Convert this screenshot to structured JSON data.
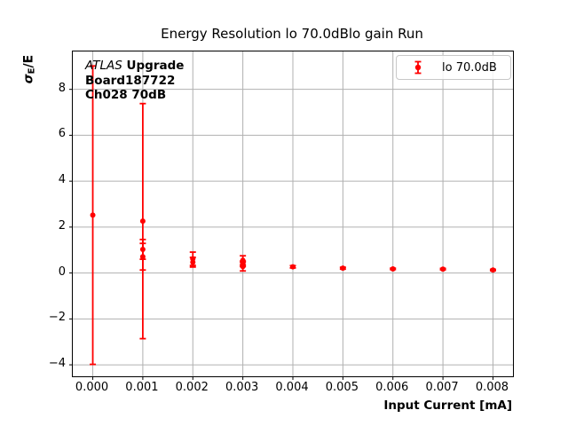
{
  "figure": {
    "title": "Energy Resolution lo 70.0dBlo gain Run"
  },
  "axis": {
    "xlabel": "Input Current [mA]",
    "ylabel_sigma": "σ",
    "ylabel_sub": "E",
    "ylabel_rest": "/E"
  },
  "annotation": {
    "line1_italic": "ATLAS",
    "line1_bold": " Upgrade",
    "line2": "Board187722",
    "line3": "Ch028 70dB"
  },
  "legend": {
    "label": "lo 70.0dB"
  },
  "colors": {
    "series": "#ff0000",
    "grid": "#b0b0b0",
    "axis": "#000000",
    "legend_border": "#c8c8c8",
    "background": "#ffffff"
  },
  "chart_data": {
    "type": "scatter",
    "title": "Energy Resolution lo 70.0dBlo gain Run",
    "xlabel": "Input Current [mA]",
    "ylabel": "σE/E",
    "grid": true,
    "legend_position": "upper right",
    "legend_entries": [
      "lo 70.0dB"
    ],
    "xlim": [
      -0.0004,
      0.0084
    ],
    "ylim": [
      -4.5,
      9.65
    ],
    "xticks": [
      0.0,
      0.001,
      0.002,
      0.003,
      0.004,
      0.005,
      0.006,
      0.007,
      0.008
    ],
    "xtick_labels": [
      "0.000",
      "0.001",
      "0.002",
      "0.003",
      "0.004",
      "0.005",
      "0.006",
      "0.007",
      "0.008"
    ],
    "yticks": [
      8,
      6,
      4,
      2,
      0,
      -2,
      -4
    ],
    "ytick_labels": [
      "8",
      "6",
      "4",
      "2",
      "0",
      "−2",
      "−4"
    ],
    "series": [
      {
        "name": "lo 70.0dB",
        "color": "#ff0000",
        "marker": "circle",
        "points": [
          {
            "x": 0.0,
            "y": 2.52,
            "yerr": 6.5
          },
          {
            "x": 0.001,
            "y": 2.26,
            "yerr": 5.12
          },
          {
            "x": 0.001,
            "y": 1.03,
            "yerr": 0.43
          },
          {
            "x": 0.001,
            "y": 0.71,
            "yerr": 0.58
          },
          {
            "x": 0.002,
            "y": 0.62,
            "yerr": 0.29
          },
          {
            "x": 0.002,
            "y": 0.47,
            "yerr": 0.21
          },
          {
            "x": 0.003,
            "y": 0.55,
            "yerr": 0.2
          },
          {
            "x": 0.003,
            "y": 0.4,
            "yerr": 0.12
          },
          {
            "x": 0.003,
            "y": 0.28,
            "yerr": 0.19
          },
          {
            "x": 0.004,
            "y": 0.27,
            "yerr": 0.05
          },
          {
            "x": 0.005,
            "y": 0.21,
            "yerr": 0.04
          },
          {
            "x": 0.006,
            "y": 0.18,
            "yerr": 0.03
          },
          {
            "x": 0.007,
            "y": 0.17,
            "yerr": 0.03
          },
          {
            "x": 0.008,
            "y": 0.13,
            "yerr": 0.03
          }
        ]
      }
    ],
    "text_annotations": [
      "ATLAS Upgrade",
      "Board187722",
      "Ch028 70dB"
    ]
  }
}
